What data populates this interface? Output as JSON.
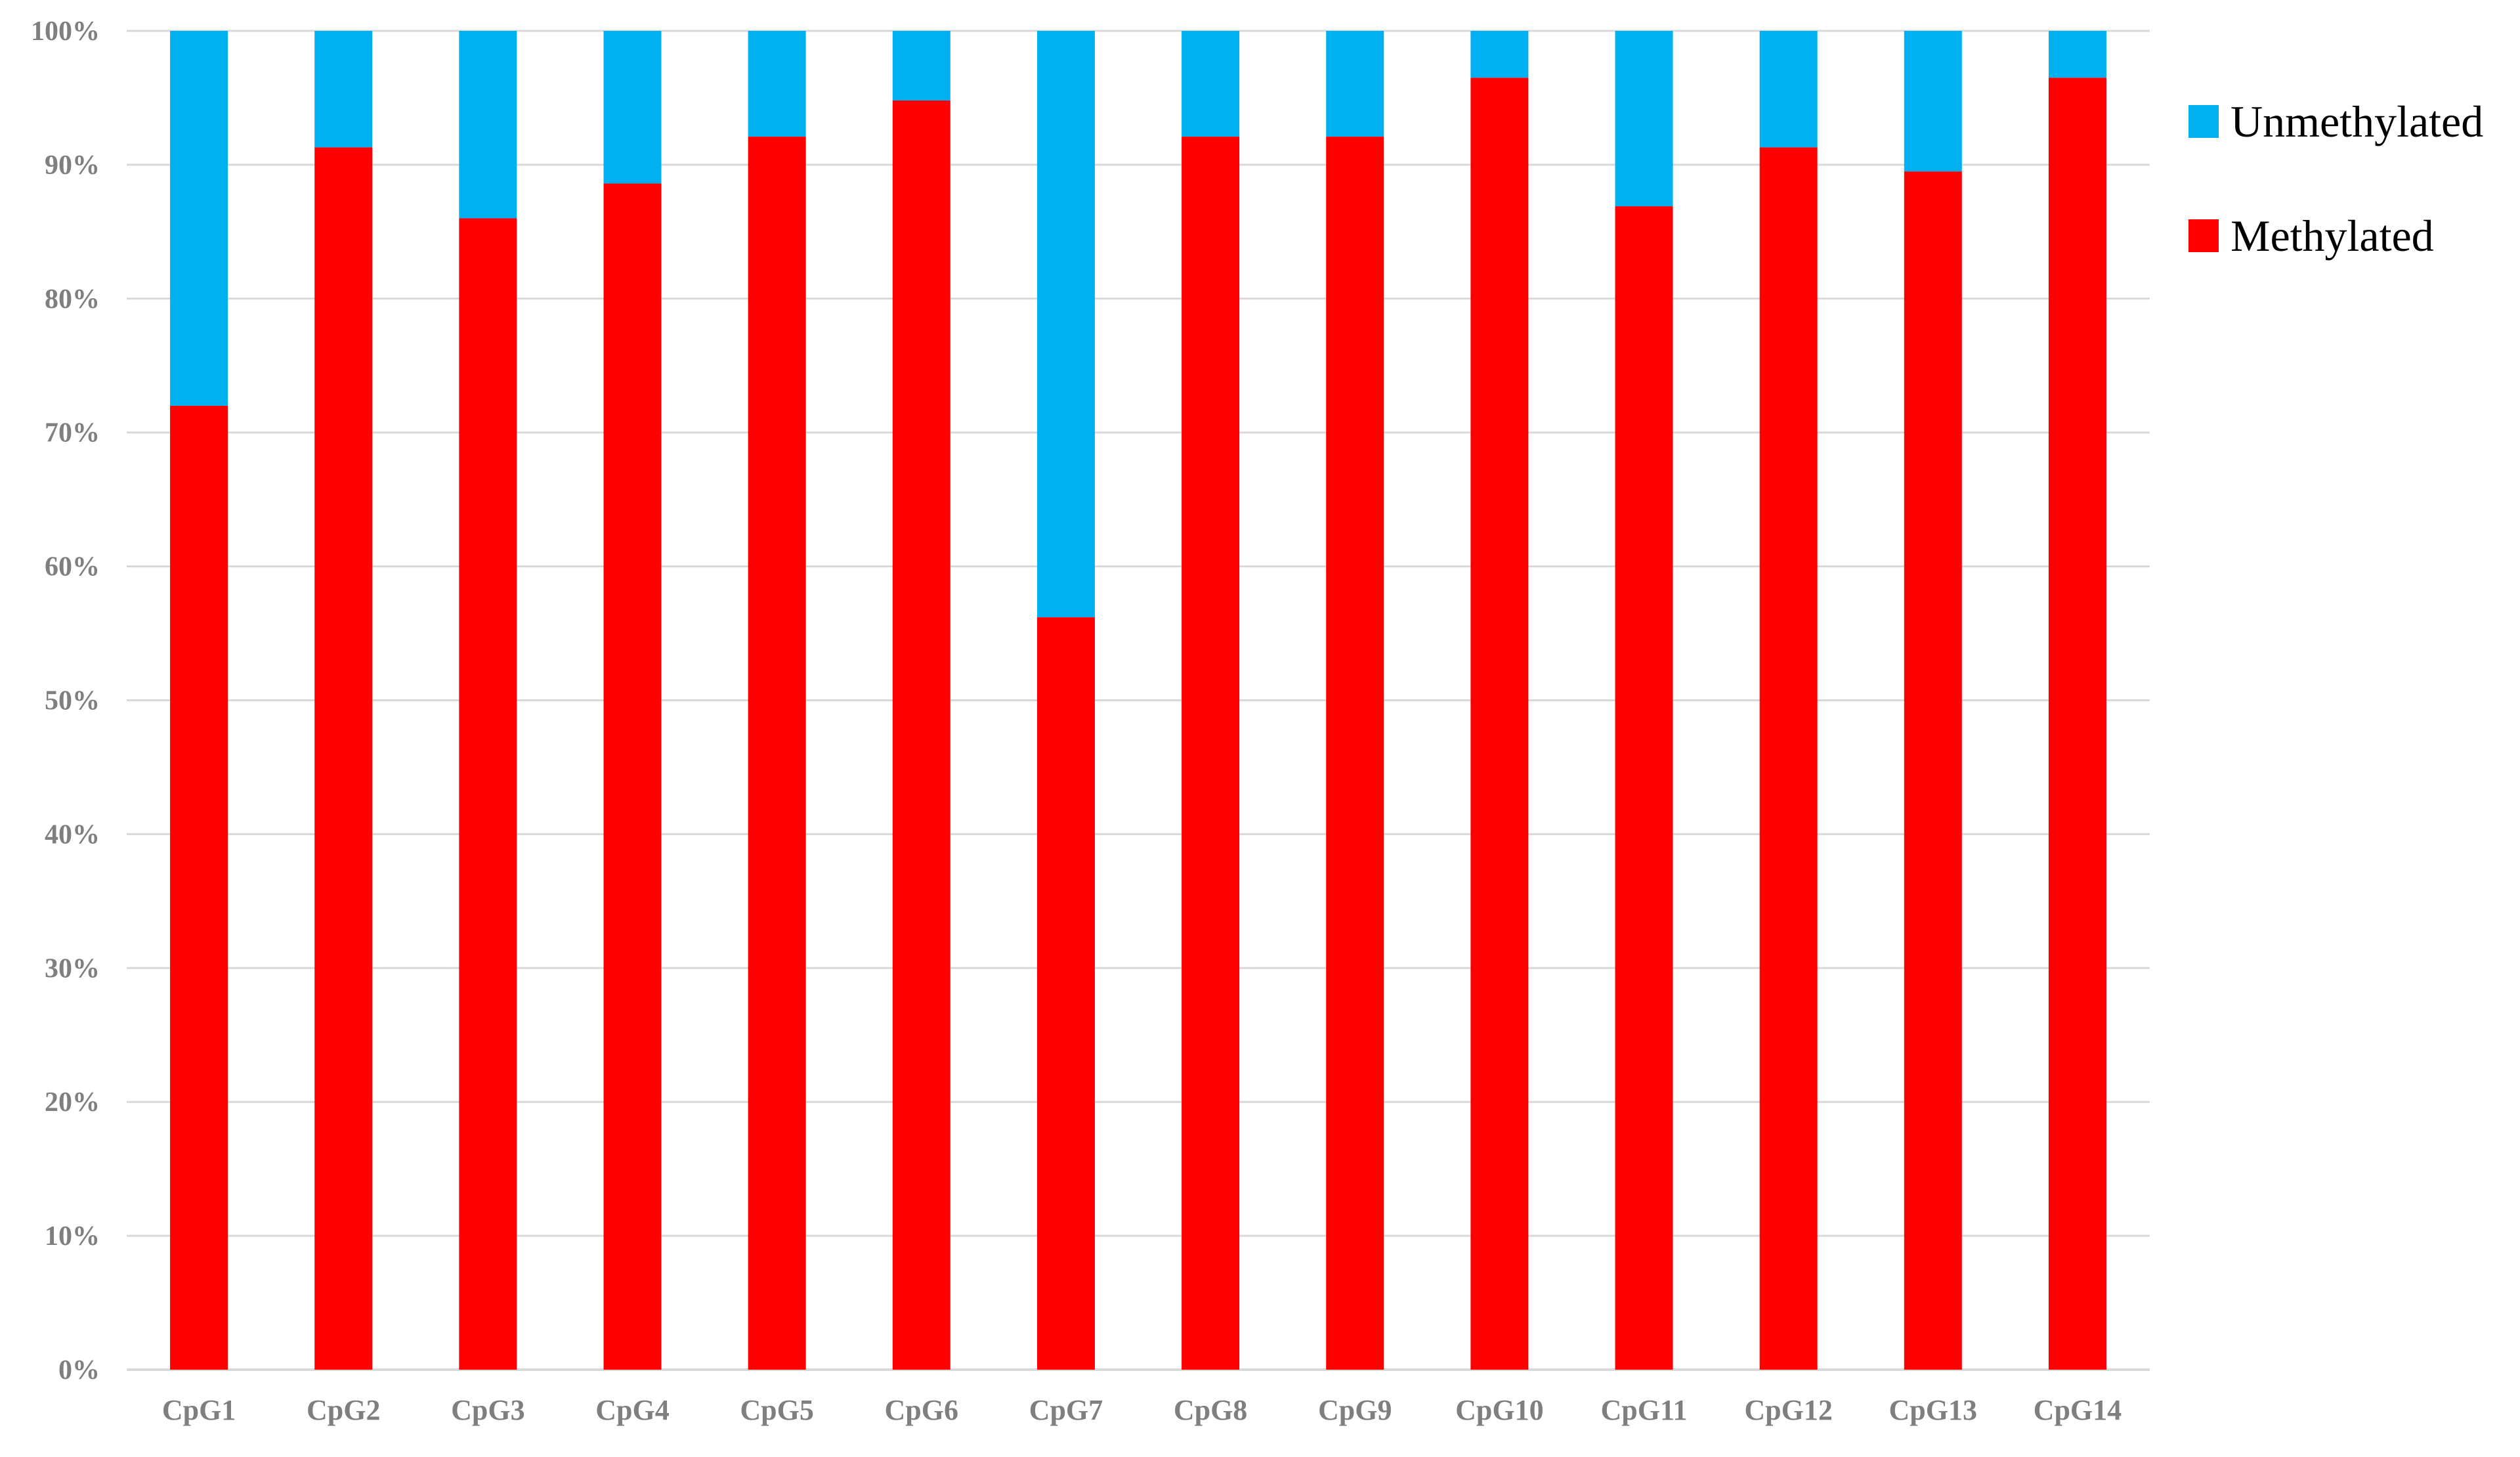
{
  "chart_data": {
    "type": "bar",
    "stacked": true,
    "percent_stacked": true,
    "categories": [
      "CpG1",
      "CpG2",
      "CpG3",
      "CpG4",
      "CpG5",
      "CpG6",
      "CpG7",
      "CpG8",
      "CpG9",
      "CpG10",
      "CpG11",
      "CpG12",
      "CpG13",
      "CpG14"
    ],
    "series": [
      {
        "name": "Methylated",
        "color": "#ff0000",
        "values": [
          72,
          91.3,
          86,
          88.6,
          92.1,
          94.8,
          56.2,
          92.1,
          92.1,
          96.5,
          86.9,
          91.3,
          89.5,
          96.5
        ]
      },
      {
        "name": "Unmethylated",
        "color": "#00b0f0",
        "values": [
          28,
          8.7,
          14,
          11.4,
          7.9,
          5.2,
          43.8,
          7.9,
          7.9,
          3.5,
          13.1,
          8.7,
          10.5,
          3.5
        ]
      }
    ],
    "y_ticks": [
      "0%",
      "10%",
      "20%",
      "30%",
      "40%",
      "50%",
      "60%",
      "70%",
      "80%",
      "90%",
      "100%"
    ],
    "ylim": [
      0,
      100
    ],
    "grid": true,
    "gridline_color": "#d9d9d9",
    "legend": {
      "placement": "right",
      "entries": [
        "Unmethylated",
        "Methylated"
      ]
    },
    "title": "",
    "xlabel": "",
    "ylabel": ""
  }
}
